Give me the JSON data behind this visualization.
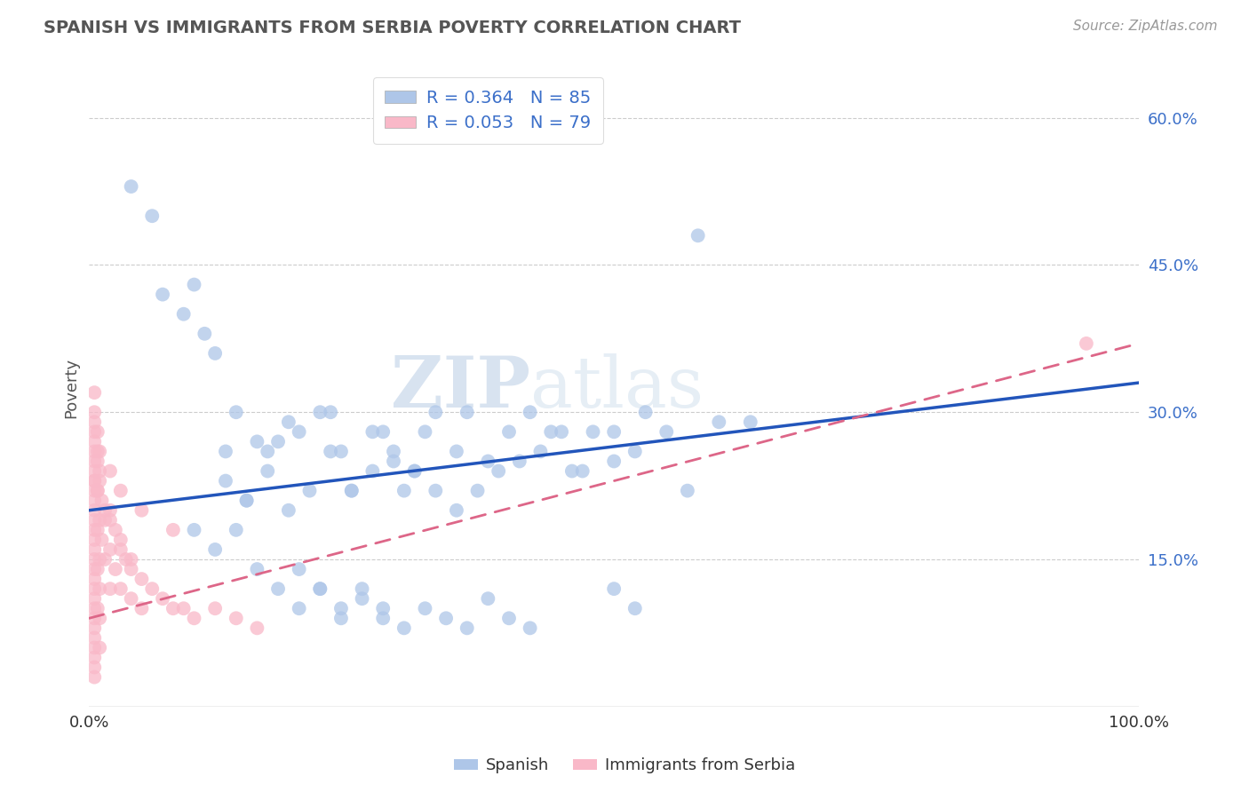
{
  "title": "SPANISH VS IMMIGRANTS FROM SERBIA POVERTY CORRELATION CHART",
  "source": "Source: ZipAtlas.com",
  "ylabel": "Poverty",
  "yticks": [
    0.0,
    0.15,
    0.3,
    0.45,
    0.6
  ],
  "ytick_labels": [
    "",
    "15.0%",
    "30.0%",
    "45.0%",
    "60.0%"
  ],
  "xlim": [
    0.0,
    1.0
  ],
  "ylim": [
    0.0,
    0.65
  ],
  "series1_name": "Spanish",
  "series1_color": "#aec6e8",
  "series1_line_color": "#2255bb",
  "series1_R": 0.364,
  "series1_N": 85,
  "series2_name": "Immigrants from Serbia",
  "series2_color": "#f9b8c8",
  "series2_line_color": "#dd6688",
  "series2_R": 0.053,
  "series2_N": 79,
  "watermark_zip": "ZIP",
  "watermark_atlas": "atlas",
  "background_color": "#ffffff",
  "grid_color": "#cccccc",
  "spanish_x": [
    0.04,
    0.06,
    0.07,
    0.09,
    0.1,
    0.11,
    0.12,
    0.13,
    0.14,
    0.15,
    0.16,
    0.17,
    0.18,
    0.19,
    0.2,
    0.22,
    0.23,
    0.24,
    0.25,
    0.27,
    0.28,
    0.29,
    0.3,
    0.31,
    0.32,
    0.33,
    0.35,
    0.36,
    0.38,
    0.4,
    0.42,
    0.44,
    0.46,
    0.48,
    0.5,
    0.52,
    0.55,
    0.57,
    0.6,
    0.63,
    0.13,
    0.15,
    0.17,
    0.19,
    0.21,
    0.23,
    0.25,
    0.27,
    0.29,
    0.31,
    0.33,
    0.35,
    0.37,
    0.39,
    0.41,
    0.43,
    0.45,
    0.47,
    0.5,
    0.53,
    0.2,
    0.22,
    0.24,
    0.26,
    0.28,
    0.3,
    0.32,
    0.34,
    0.36,
    0.38,
    0.4,
    0.42,
    0.1,
    0.12,
    0.14,
    0.16,
    0.18,
    0.2,
    0.22,
    0.24,
    0.26,
    0.28,
    0.5,
    0.52,
    0.58
  ],
  "spanish_y": [
    0.53,
    0.5,
    0.42,
    0.4,
    0.43,
    0.38,
    0.36,
    0.26,
    0.3,
    0.21,
    0.27,
    0.26,
    0.27,
    0.29,
    0.28,
    0.3,
    0.3,
    0.26,
    0.22,
    0.28,
    0.28,
    0.26,
    0.22,
    0.24,
    0.28,
    0.3,
    0.26,
    0.3,
    0.25,
    0.28,
    0.3,
    0.28,
    0.24,
    0.28,
    0.28,
    0.26,
    0.28,
    0.22,
    0.29,
    0.29,
    0.23,
    0.21,
    0.24,
    0.2,
    0.22,
    0.26,
    0.22,
    0.24,
    0.25,
    0.24,
    0.22,
    0.2,
    0.22,
    0.24,
    0.25,
    0.26,
    0.28,
    0.24,
    0.25,
    0.3,
    0.1,
    0.12,
    0.09,
    0.11,
    0.09,
    0.08,
    0.1,
    0.09,
    0.08,
    0.11,
    0.09,
    0.08,
    0.18,
    0.16,
    0.18,
    0.14,
    0.12,
    0.14,
    0.12,
    0.1,
    0.12,
    0.1,
    0.12,
    0.1,
    0.48
  ],
  "serbia_x": [
    0.005,
    0.005,
    0.005,
    0.005,
    0.005,
    0.005,
    0.005,
    0.005,
    0.005,
    0.005,
    0.005,
    0.005,
    0.005,
    0.005,
    0.005,
    0.005,
    0.005,
    0.005,
    0.005,
    0.005,
    0.005,
    0.005,
    0.005,
    0.005,
    0.005,
    0.008,
    0.008,
    0.008,
    0.008,
    0.008,
    0.01,
    0.01,
    0.01,
    0.01,
    0.01,
    0.01,
    0.012,
    0.012,
    0.015,
    0.015,
    0.02,
    0.02,
    0.02,
    0.025,
    0.025,
    0.03,
    0.03,
    0.035,
    0.04,
    0.04,
    0.05,
    0.05,
    0.06,
    0.07,
    0.08,
    0.09,
    0.1,
    0.12,
    0.14,
    0.16,
    0.005,
    0.005,
    0.005,
    0.008,
    0.008,
    0.01,
    0.015,
    0.02,
    0.03,
    0.04,
    0.005,
    0.005,
    0.008,
    0.01,
    0.02,
    0.03,
    0.05,
    0.08,
    0.95
  ],
  "serbia_y": [
    0.28,
    0.27,
    0.25,
    0.23,
    0.22,
    0.2,
    0.19,
    0.18,
    0.16,
    0.15,
    0.13,
    0.12,
    0.1,
    0.09,
    0.08,
    0.07,
    0.06,
    0.05,
    0.04,
    0.03,
    0.24,
    0.21,
    0.17,
    0.14,
    0.11,
    0.26,
    0.22,
    0.18,
    0.14,
    0.1,
    0.23,
    0.19,
    0.15,
    0.12,
    0.09,
    0.06,
    0.21,
    0.17,
    0.19,
    0.15,
    0.2,
    0.16,
    0.12,
    0.18,
    0.14,
    0.16,
    0.12,
    0.15,
    0.14,
    0.11,
    0.13,
    0.1,
    0.12,
    0.11,
    0.1,
    0.1,
    0.09,
    0.1,
    0.09,
    0.08,
    0.29,
    0.26,
    0.23,
    0.25,
    0.22,
    0.24,
    0.2,
    0.19,
    0.17,
    0.15,
    0.3,
    0.32,
    0.28,
    0.26,
    0.24,
    0.22,
    0.2,
    0.18,
    0.37
  ]
}
